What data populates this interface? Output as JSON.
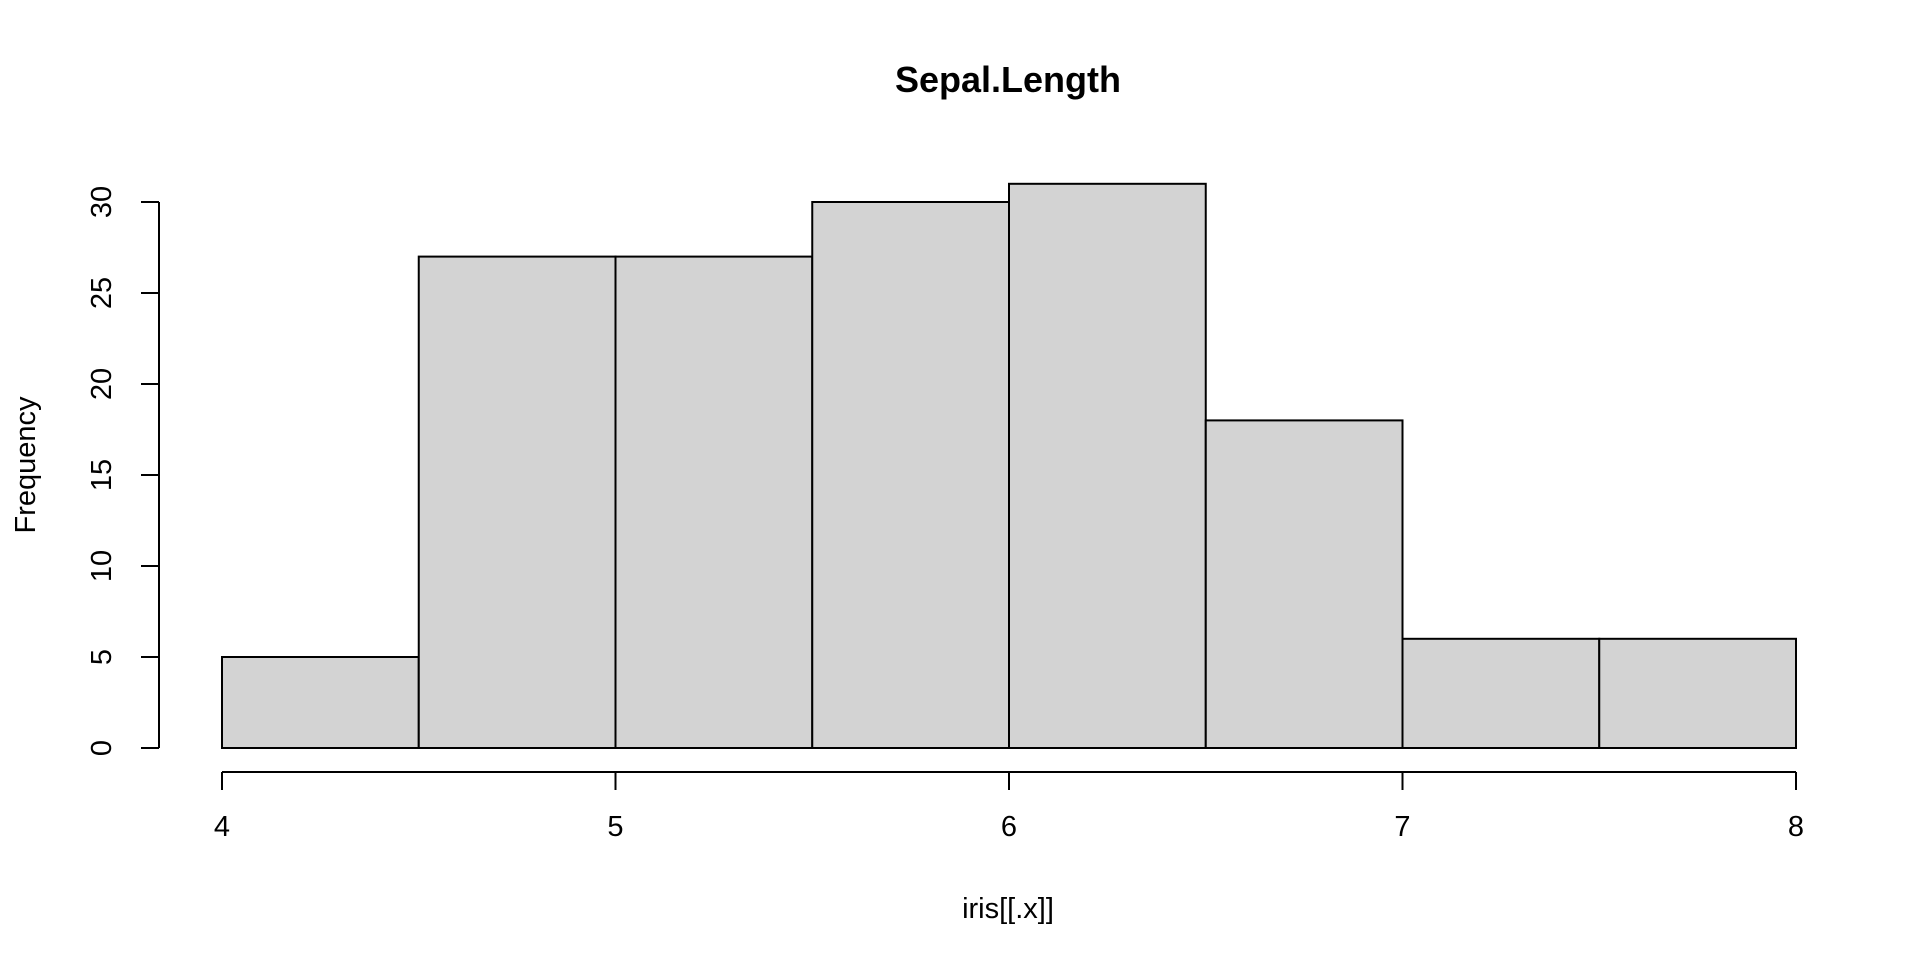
{
  "chart_data": {
    "type": "bar",
    "title": "Sepal.Length",
    "xlabel": "iris[[.x]]",
    "ylabel": "Frequency",
    "bin_edges": [
      4,
      4.5,
      5,
      5.5,
      6,
      6.5,
      7,
      7.5,
      8
    ],
    "values": [
      5,
      27,
      27,
      30,
      31,
      18,
      6,
      6
    ],
    "xlim": [
      4,
      8
    ],
    "ylim": [
      0,
      31
    ],
    "x_ticks": [
      4,
      5,
      6,
      7,
      8
    ],
    "y_ticks": [
      0,
      5,
      10,
      15,
      20,
      25,
      30
    ],
    "bar_color": "#d3d3d3",
    "border_color": "#000000",
    "grid": false,
    "legend": "none"
  }
}
